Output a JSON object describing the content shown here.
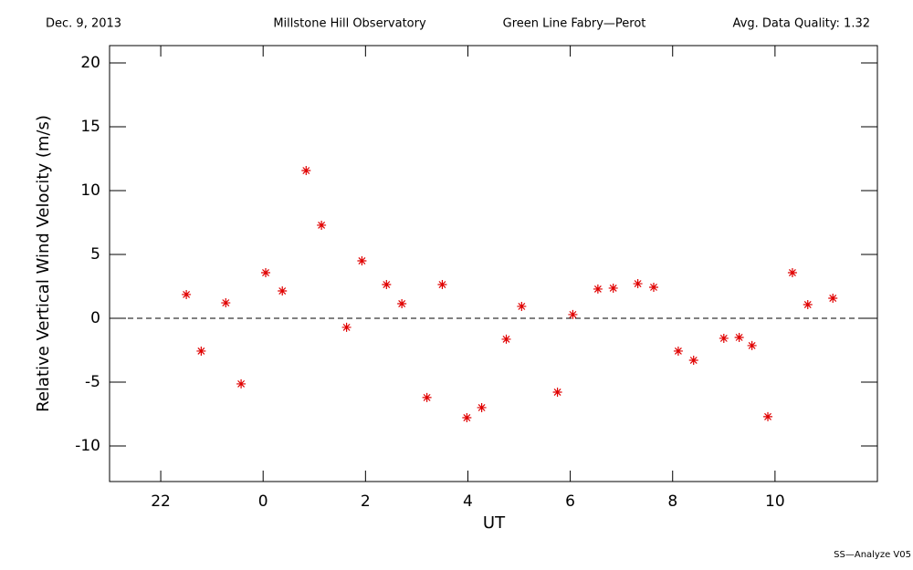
{
  "chart_data": {
    "type": "scatter",
    "header": [
      "Dec. 9, 2013",
      "Millstone Hill Observatory",
      "Green Line Fabry—Perot",
      "Avg. Data Quality: 1.32"
    ],
    "footer": "SS—Analyze V05",
    "xlabel": "UT",
    "ylabel": "Relative Vertical Wind Velocity (m/s)",
    "xlim": [
      -3,
      12
    ],
    "ylim": [
      -12.79,
      21.36
    ],
    "xticks": [
      {
        "value": -2,
        "label": "22"
      },
      0,
      2,
      4,
      6,
      8,
      10
    ],
    "yticks": [
      -10,
      -5,
      0,
      5,
      10,
      15,
      20
    ],
    "reference_line": 0,
    "series": [
      {
        "color": "#e00000",
        "x": [
          -1.5,
          -1.21,
          -0.73,
          -0.43,
          0.05,
          0.375,
          0.84,
          1.14,
          1.63,
          1.93,
          2.41,
          2.71,
          3.2,
          3.5,
          3.98,
          4.27,
          4.75,
          5.05,
          5.75,
          6.05,
          6.54,
          6.84,
          7.32,
          7.63,
          8.11,
          8.41,
          9.0,
          9.3,
          9.55,
          9.86,
          10.34,
          10.64,
          11.13
        ],
        "values": [
          1.86,
          -2.57,
          1.21,
          -5.14,
          3.57,
          2.14,
          11.57,
          7.29,
          -0.71,
          4.5,
          2.64,
          1.14,
          -6.21,
          2.64,
          -7.79,
          -7.0,
          -1.64,
          0.93,
          -5.79,
          0.29,
          2.29,
          2.36,
          2.71,
          2.43,
          -2.57,
          -3.29,
          -1.57,
          -1.5,
          -2.14,
          -7.71,
          3.57,
          1.07,
          1.57
        ]
      }
    ]
  }
}
